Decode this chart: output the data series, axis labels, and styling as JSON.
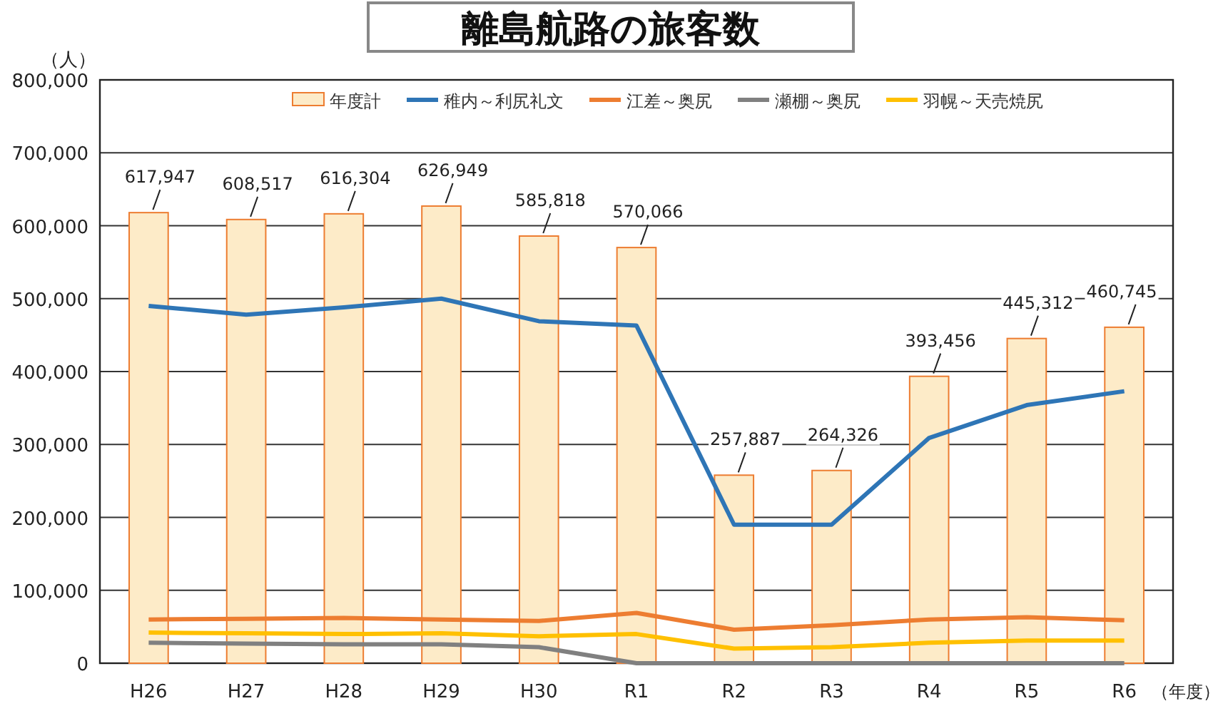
{
  "chart_data": {
    "type": "bar",
    "title": "離島航路の旅客数",
    "ylabel": "（人）",
    "xlabel": "（年度）",
    "categories": [
      "H26",
      "H27",
      "H28",
      "H29",
      "H30",
      "R1",
      "R2",
      "R3",
      "R4",
      "R5",
      "R6"
    ],
    "series": [
      {
        "name": "年度計",
        "color": "#fdebc8",
        "values": [
          617947,
          608517,
          616304,
          626949,
          585818,
          570066,
          257887,
          264326,
          393456,
          445312,
          460745
        ],
        "value_labels": [
          "617,947",
          "608,517",
          "616,304",
          "626,949",
          "585,818",
          "570,066",
          "257,887",
          "264,326",
          "393,456",
          "445,312",
          "460,745"
        ]
      },
      {
        "name": "稚内～利尻礼文",
        "type": "line",
        "color": "#2e75b6",
        "values": [
          490000,
          478000,
          488000,
          500000,
          469000,
          463000,
          190000,
          190000,
          309000,
          354000,
          373000
        ]
      },
      {
        "name": "江差～奥尻",
        "type": "line",
        "color": "#ed7d31",
        "values": [
          60000,
          61000,
          62000,
          60000,
          58000,
          69000,
          46000,
          52000,
          60000,
          63000,
          59000
        ]
      },
      {
        "name": "瀬棚～奥尻",
        "type": "line",
        "color": "#808080",
        "values": [
          28000,
          27000,
          26000,
          26000,
          22000,
          0,
          0,
          0,
          0,
          0,
          0
        ]
      },
      {
        "name": "羽幌～天売焼尻",
        "type": "line",
        "color": "#ffc000",
        "values": [
          42000,
          41000,
          40000,
          41000,
          37000,
          40000,
          20000,
          22000,
          28000,
          31000,
          31000
        ]
      }
    ],
    "ylim": [
      0,
      800000
    ],
    "yticks": [
      {
        "value": 0,
        "label": "0"
      },
      {
        "value": 100000,
        "label": "100,000"
      },
      {
        "value": 200000,
        "label": "200,000"
      },
      {
        "value": 300000,
        "label": "300,000"
      },
      {
        "value": 400000,
        "label": "400,000"
      },
      {
        "value": 500000,
        "label": "500,000"
      },
      {
        "value": 600000,
        "label": "600,000"
      },
      {
        "value": 700000,
        "label": "700,000"
      },
      {
        "value": 800000,
        "label": "800,000"
      }
    ],
    "grid": "y",
    "legend": "top right",
    "marker": "none",
    "line_style": "solid"
  }
}
